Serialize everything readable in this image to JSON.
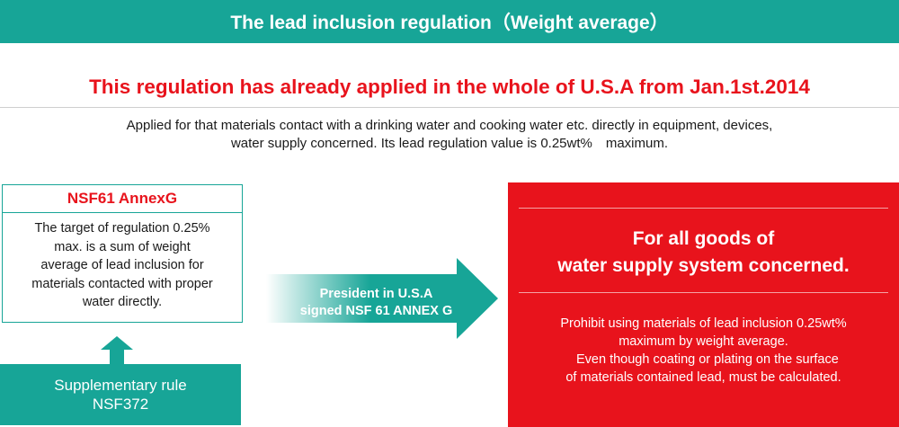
{
  "header": {
    "title": "The lead inclusion regulation（Weight average）"
  },
  "headline": "This regulation has already applied in the whole of U.S.A from Jan.1st.2014",
  "intro": {
    "line1": "Applied for that materials contact with a drinking water and cooking water etc. directly in equipment, devices,",
    "line2": "water supply concerned. Its lead regulation value is 0.25wt%　maximum."
  },
  "nsf_box": {
    "title": "NSF61 AnnexG",
    "lines": [
      "The target of regulation 0.25%",
      "max. is a sum of weight",
      "average of lead inclusion for",
      "materials contacted with proper",
      "water directly."
    ]
  },
  "supplementary": {
    "line1": "Supplementary rule",
    "line2": "NSF372"
  },
  "arrow": {
    "line1": "President in U.S.A",
    "line2": "signed NSF 61 ANNEX G"
  },
  "result_box": {
    "title_line1": "For all goods of",
    "title_line2": "water supply system concerned.",
    "body_lines": [
      "Prohibit using materials of lead inclusion 0.25wt%",
      "maximum by weight average.",
      "Even though coating or plating on the surface",
      "of materials contained lead, must be calculated."
    ]
  },
  "colors": {
    "teal": "#17a597",
    "red": "#e8131c",
    "text": "#1a1a1a",
    "white": "#ffffff"
  }
}
